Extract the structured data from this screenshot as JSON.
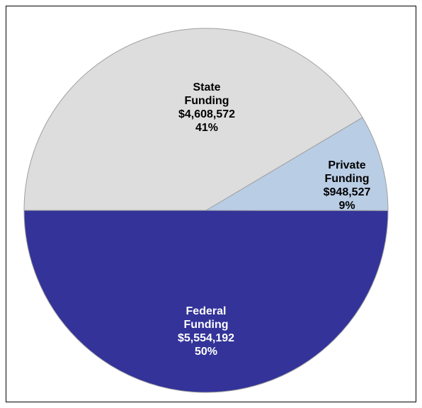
{
  "chart_data": {
    "type": "pie",
    "categories": [
      "Federal Funding",
      "Private Funding",
      "State Funding"
    ],
    "values": [
      5554192,
      948527,
      4608572
    ],
    "value_labels": [
      "$5,554,192",
      "$948,527",
      "$4,608,572"
    ],
    "percent_labels": [
      "50%",
      "9%",
      "41%"
    ],
    "colors": [
      "#333399",
      "#b9cde5",
      "#dddddd"
    ],
    "label_colors": [
      "#ffffff",
      "#000000",
      "#000000"
    ]
  }
}
